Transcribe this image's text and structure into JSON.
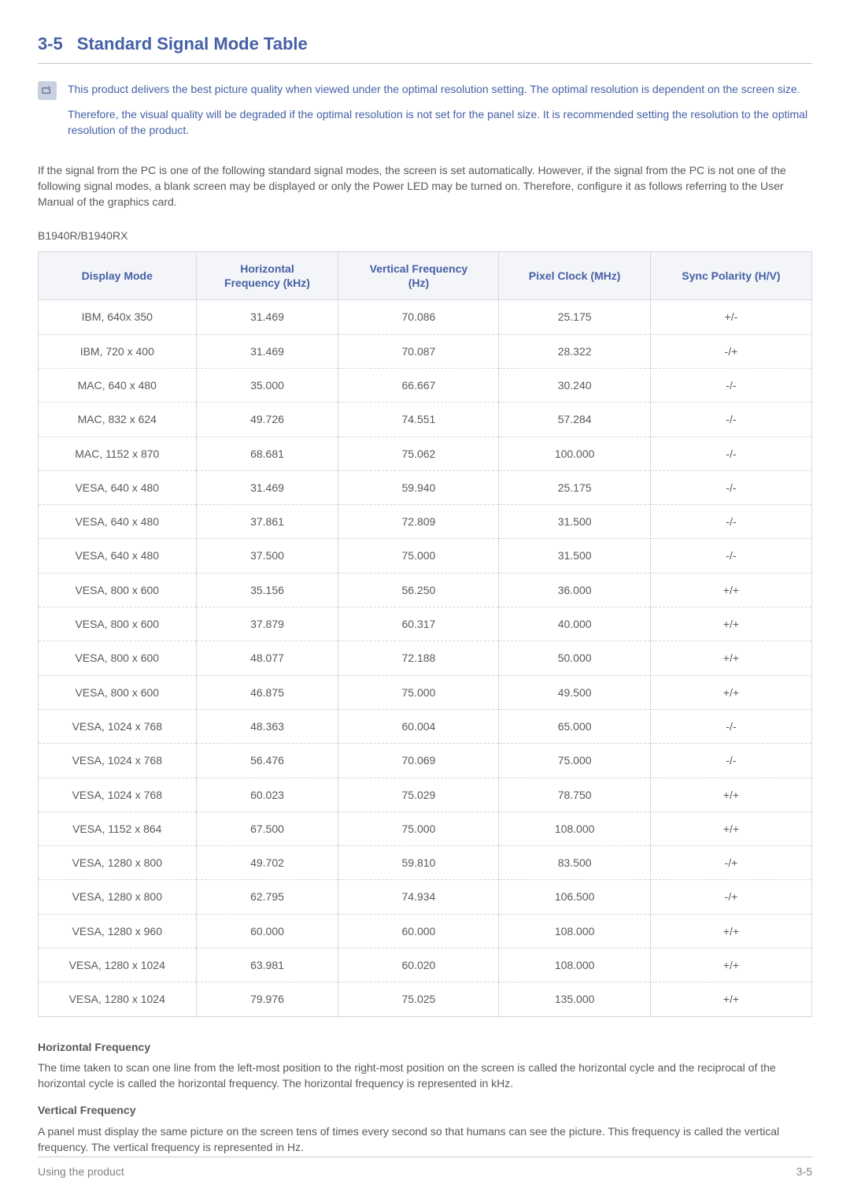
{
  "section": {
    "number": "3-5",
    "title": "Standard Signal Mode Table"
  },
  "note": {
    "paragraph1": "This product delivers the best picture quality when viewed under the optimal resolution setting. The optimal resolution is dependent on the screen size.",
    "paragraph2": "Therefore, the visual quality will be degraded if the optimal resolution is not set for the panel size. It is recommended setting the resolution to the optimal resolution of the product."
  },
  "intro_paragraph": "If the signal from the PC is one of the following standard signal modes, the screen is set automatically. However, if the signal from the PC is not one of the following signal modes, a blank screen may be displayed or only the Power LED may be turned on. Therefore, configure it as follows referring to the User Manual of the graphics card.",
  "model_label": "B1940R/B1940RX",
  "table": {
    "headers": {
      "display_mode": "Display Mode",
      "horizontal_line1": "Horizontal",
      "horizontal_line2": "Frequency (kHz)",
      "vertical_line1": "Vertical Frequency",
      "vertical_line2": "(Hz)",
      "pixel_clock": "Pixel Clock (MHz)",
      "sync_polarity": "Sync Polarity (H/V)"
    },
    "rows": [
      {
        "mode": "IBM, 640x 350",
        "h": "31.469",
        "v": "70.086",
        "p": "25.175",
        "s": "+/-"
      },
      {
        "mode": "IBM, 720 x 400",
        "h": "31.469",
        "v": "70.087",
        "p": "28.322",
        "s": "-/+"
      },
      {
        "mode": "MAC, 640 x 480",
        "h": "35.000",
        "v": "66.667",
        "p": "30.240",
        "s": "-/-"
      },
      {
        "mode": "MAC, 832 x 624",
        "h": "49.726",
        "v": "74.551",
        "p": "57.284",
        "s": "-/-"
      },
      {
        "mode": "MAC, 1152 x 870",
        "h": "68.681",
        "v": "75.062",
        "p": "100.000",
        "s": "-/-"
      },
      {
        "mode": "VESA, 640 x 480",
        "h": "31.469",
        "v": "59.940",
        "p": "25.175",
        "s": "-/-"
      },
      {
        "mode": "VESA, 640 x 480",
        "h": "37.861",
        "v": "72.809",
        "p": "31.500",
        "s": "-/-"
      },
      {
        "mode": "VESA, 640 x 480",
        "h": "37.500",
        "v": "75.000",
        "p": "31.500",
        "s": "-/-"
      },
      {
        "mode": "VESA, 800 x 600",
        "h": "35.156",
        "v": "56.250",
        "p": "36.000",
        "s": "+/+"
      },
      {
        "mode": "VESA, 800 x 600",
        "h": "37.879",
        "v": "60.317",
        "p": "40.000",
        "s": "+/+"
      },
      {
        "mode": "VESA, 800 x 600",
        "h": "48.077",
        "v": "72.188",
        "p": "50.000",
        "s": "+/+"
      },
      {
        "mode": "VESA, 800 x 600",
        "h": "46.875",
        "v": "75.000",
        "p": "49.500",
        "s": "+/+"
      },
      {
        "mode": "VESA, 1024 x 768",
        "h": "48.363",
        "v": "60.004",
        "p": "65.000",
        "s": "-/-"
      },
      {
        "mode": "VESA, 1024 x 768",
        "h": "56.476",
        "v": "70.069",
        "p": "75.000",
        "s": "-/-"
      },
      {
        "mode": "VESA, 1024 x 768",
        "h": "60.023",
        "v": "75.029",
        "p": "78.750",
        "s": "+/+"
      },
      {
        "mode": "VESA, 1152 x 864",
        "h": "67.500",
        "v": "75.000",
        "p": "108.000",
        "s": "+/+"
      },
      {
        "mode": "VESA, 1280 x 800",
        "h": "49.702",
        "v": "59.810",
        "p": "83.500",
        "s": "-/+"
      },
      {
        "mode": "VESA, 1280 x 800",
        "h": "62.795",
        "v": "74.934",
        "p": "106.500",
        "s": "-/+"
      },
      {
        "mode": "VESA, 1280 x 960",
        "h": "60.000",
        "v": "60.000",
        "p": "108.000",
        "s": "+/+"
      },
      {
        "mode": "VESA, 1280 x 1024",
        "h": "63.981",
        "v": "60.020",
        "p": "108.000",
        "s": "+/+"
      },
      {
        "mode": "VESA, 1280 x 1024",
        "h": "79.976",
        "v": "75.025",
        "p": "135.000",
        "s": "+/+"
      }
    ]
  },
  "definitions": {
    "horizontal": {
      "heading": "Horizontal Frequency",
      "body": "The time taken to scan one line from the left-most position to the right-most position on the screen is called the horizontal cycle and the reciprocal of the horizontal cycle is called the horizontal frequency. The horizontal frequency is represented in kHz."
    },
    "vertical": {
      "heading": "Vertical Frequency",
      "body": "A panel must display the same picture on the screen tens of times every second so that humans can see the picture. This frequency is called the vertical frequency. The vertical frequency is represented in Hz."
    }
  },
  "footer": {
    "left": "Using the product",
    "right": "3-5"
  }
}
